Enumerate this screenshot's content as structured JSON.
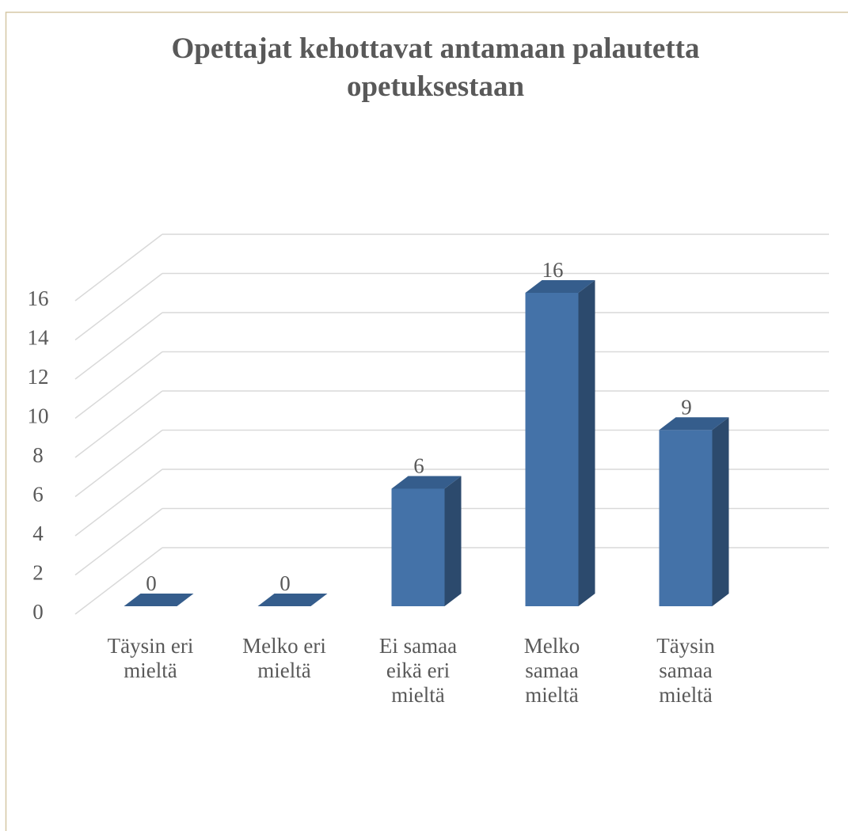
{
  "chart_data": {
    "type": "bar3d",
    "title": "Opettajat kehottavat antamaan palautetta opetuksestaan",
    "categories": [
      "Täysin eri mieltä",
      "Melko eri mieltä",
      "Ei samaa eikä eri mieltä",
      "Melko samaa mieltä",
      "Täysin samaa mieltä"
    ],
    "values": [
      0,
      0,
      6,
      16,
      9
    ],
    "color": "#4472a8",
    "ylim": [
      0,
      16
    ],
    "yticks": [
      0,
      2,
      4,
      6,
      8,
      10,
      12,
      14,
      16
    ],
    "grid": true
  }
}
